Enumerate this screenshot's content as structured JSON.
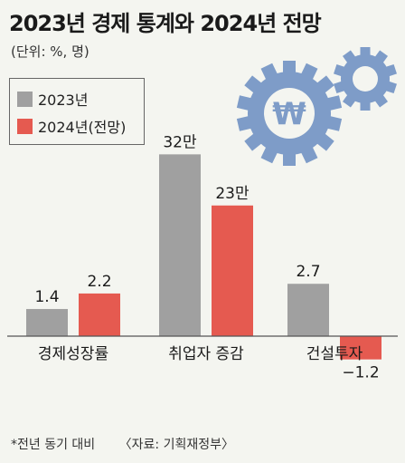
{
  "title": "2023년 경제 통계와 2024년 전망",
  "unit": "(단위: %, 명)",
  "footnote": "*전년 동기 대비",
  "source": "〈자료: 기획재정부〉",
  "colors": {
    "s2023": "#a0a0a0",
    "s2024": "#e55a50",
    "gear": "#7e9cc8",
    "background": "#f4f5f0"
  },
  "icons": {
    "gear_large": "gear-icon",
    "won_symbol": "₩"
  },
  "chart_data": {
    "type": "bar",
    "categories": [
      "경제성장률",
      "취업자 증감",
      "건설투자"
    ],
    "series": [
      {
        "name": "2023년",
        "values": [
          1.4,
          32,
          2.7
        ],
        "labels": [
          "1.4",
          "32만",
          "2.7"
        ]
      },
      {
        "name": "2024년(전망)",
        "values": [
          2.2,
          23,
          -1.2
        ],
        "labels": [
          "2.2",
          "23만",
          "−1.2"
        ]
      }
    ],
    "legend_position": "top-left",
    "grid": false
  }
}
